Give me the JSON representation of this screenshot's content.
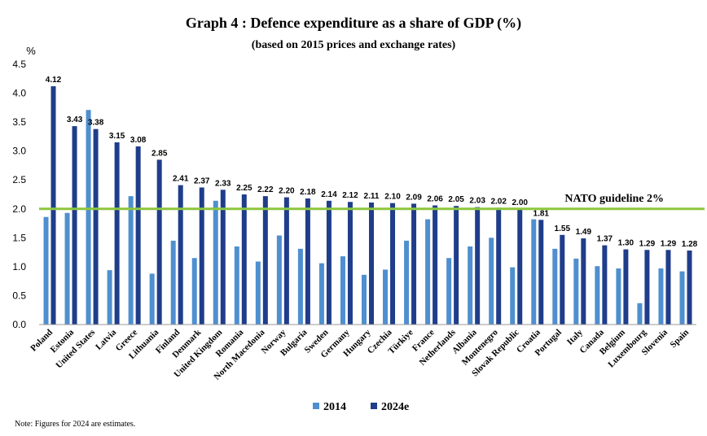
{
  "chart_data": {
    "type": "bar",
    "title": "Graph 4 : Defence expenditure as a share of GDP (%)",
    "subtitle": "(based on 2015 prices and exchange rates)",
    "ylabel": "%",
    "ylim": [
      0,
      4.5
    ],
    "yticks": [
      "0.0",
      "0.5",
      "1.0",
      "1.5",
      "2.0",
      "2.5",
      "3.0",
      "3.5",
      "4.0",
      "4.5"
    ],
    "categories": [
      "Poland",
      "Estonia",
      "United States",
      "Latvia",
      "Greece",
      "Lithuania",
      "Finland",
      "Denmark",
      "United Kingdom",
      "Romania",
      "North Macedonia",
      "Norway",
      "Bulgaria",
      "Sweden",
      "Germany",
      "Hungary",
      "Czechia",
      "Türkiye",
      "France",
      "Netherlands",
      "Albania",
      "Montenegro",
      "Slovak Republic",
      "Croatia",
      "Portugal",
      "Italy",
      "Canada",
      "Belgium",
      "Luxembourg",
      "Slovenia",
      "Spain"
    ],
    "series": [
      {
        "name": "2014",
        "color": "#4f8fcf",
        "values": [
          1.86,
          1.93,
          3.71,
          0.94,
          2.22,
          0.88,
          1.45,
          1.15,
          2.14,
          1.35,
          1.09,
          1.54,
          1.31,
          1.06,
          1.18,
          0.86,
          0.95,
          1.45,
          1.82,
          1.15,
          1.35,
          1.5,
          0.99,
          1.82,
          1.31,
          1.14,
          1.01,
          0.97,
          0.37,
          0.97,
          0.92
        ]
      },
      {
        "name": "2024e",
        "color": "#1f3d8a",
        "values": [
          4.12,
          3.43,
          3.38,
          3.15,
          3.08,
          2.85,
          2.41,
          2.37,
          2.33,
          2.25,
          2.22,
          2.2,
          2.18,
          2.14,
          2.12,
          2.11,
          2.1,
          2.09,
          2.06,
          2.05,
          2.03,
          2.02,
          2.0,
          1.81,
          1.55,
          1.49,
          1.37,
          1.3,
          1.29,
          1.29,
          1.28
        ],
        "labels": [
          "4.12",
          "3.43",
          "3.38",
          "3.15",
          "3.08",
          "2.85",
          "2.41",
          "2.37",
          "2.33",
          "2.25",
          "2.22",
          "2.20",
          "2.18",
          "2.14",
          "2.12",
          "2.11",
          "2.10",
          "2.09",
          "2.06",
          "2.05",
          "2.03",
          "2.02",
          "2.00",
          "1.81",
          "1.55",
          "1.49",
          "1.37",
          "1.30",
          "1.29",
          "1.29",
          "1.28"
        ]
      }
    ],
    "reference_line": {
      "value": 2.0,
      "label": "NATO guideline 2%",
      "color": "#8cc63f"
    },
    "legend_position": "bottom",
    "grid": false
  },
  "note": "Note: Figures for 2024 are estimates."
}
